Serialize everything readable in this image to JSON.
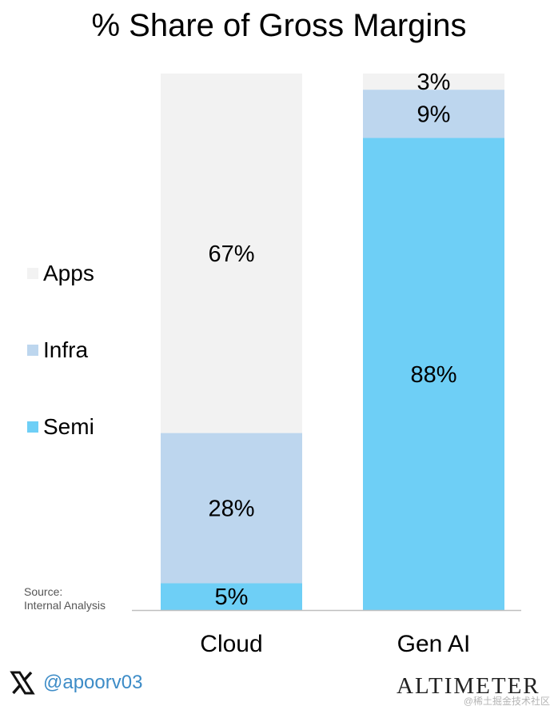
{
  "colors": {
    "apps": "#f2f2f2",
    "infra": "#bdd6ee",
    "semi": "#6ecff6",
    "handle": "#3d8cc7"
  },
  "legend": [
    {
      "key": "apps",
      "label": "Apps"
    },
    {
      "key": "infra",
      "label": "Infra"
    },
    {
      "key": "semi",
      "label": "Semi"
    }
  ],
  "source": {
    "line1": "Source:",
    "line2": "Internal Analysis"
  },
  "footer": {
    "handle": "@apoorv03",
    "brand": "ALTIMETER",
    "watermark": "@稀土掘金技术社区"
  },
  "chart_data": {
    "type": "bar",
    "stacked": true,
    "normalized": true,
    "title": "% Share of Gross Margins",
    "xlabel": "",
    "ylabel": "",
    "ylim": [
      0,
      100
    ],
    "grid": false,
    "legend_position": "left",
    "categories": [
      "Cloud",
      "Gen AI"
    ],
    "series": [
      {
        "name": "Semi",
        "key": "semi",
        "values": [
          5,
          88
        ],
        "labels": [
          "5%",
          "88%"
        ]
      },
      {
        "name": "Infra",
        "key": "infra",
        "values": [
          28,
          9
        ],
        "labels": [
          "28%",
          "9%"
        ]
      },
      {
        "name": "Apps",
        "key": "apps",
        "values": [
          67,
          3
        ],
        "labels": [
          "67%",
          "3%"
        ]
      }
    ]
  }
}
